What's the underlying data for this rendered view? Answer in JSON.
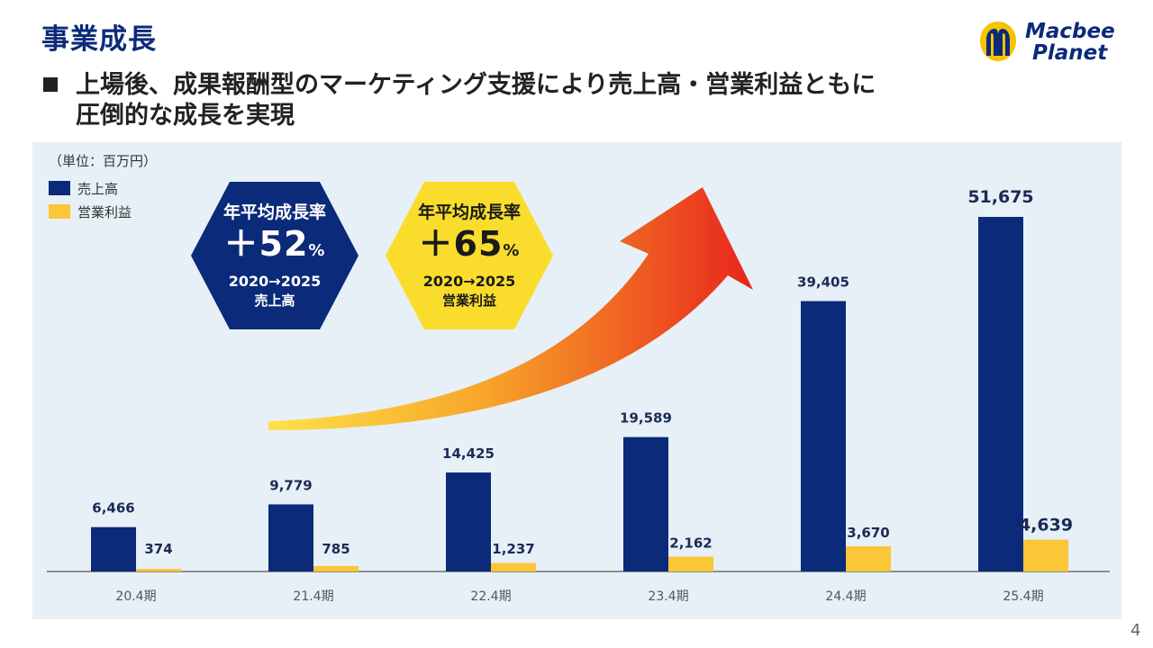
{
  "page": {
    "title": "事業成長",
    "subtitle_line1": "上場後、成果報酬型のマーケティング支援により売上高・営業利益ともに",
    "subtitle_line2": "圧倒的な成長を実現",
    "page_number": "4"
  },
  "logo": {
    "line1": "Macbee",
    "line2": "Planet",
    "brand_color": "#0b2a7a",
    "accent_color": "#f5c300"
  },
  "badges": [
    {
      "title": "年平均成長率",
      "rate": "＋52",
      "unit": "%",
      "years": "2020→2025",
      "metric": "売上高",
      "fill": "#0b2a7a",
      "text_color": "#ffffff"
    },
    {
      "title": "年平均成長率",
      "rate": "＋65",
      "unit": "%",
      "years": "2020→2025",
      "metric": "営業利益",
      "fill": "#fadd2c",
      "text_color": "#1a1a1a"
    }
  ],
  "chart_data": {
    "type": "bar",
    "unit_label": "（単位：百万円）",
    "categories": [
      "20.4期",
      "21.4期",
      "22.4期",
      "23.4期",
      "24.4期",
      "25.4期"
    ],
    "series": [
      {
        "name": "売上高",
        "color": "#0b2a7a",
        "values": [
          6466,
          9779,
          14425,
          19589,
          39405,
          51675
        ],
        "labels": [
          "6,466",
          "9,779",
          "14,425",
          "19,589",
          "39,405",
          "51,675"
        ]
      },
      {
        "name": "営業利益",
        "color": "#fbc637",
        "values": [
          374,
          785,
          1237,
          2162,
          3670,
          4639
        ],
        "labels": [
          "374",
          "785",
          "1,237",
          "2,162",
          "3,670",
          "4,639"
        ]
      }
    ],
    "ylim": [
      0,
      51675
    ],
    "grid": false,
    "legend_position": "top-left"
  }
}
